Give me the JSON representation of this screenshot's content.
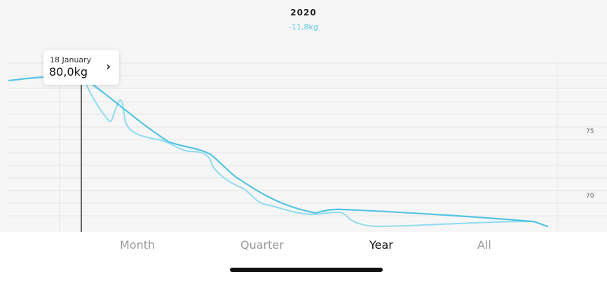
{
  "header": {
    "year": "2020",
    "delta": "-11,8kg"
  },
  "tooltip": {
    "date": "18 January",
    "value": "80,0kg",
    "chevron_icon": "chevron-right-icon"
  },
  "y_axis": {
    "ticks": [
      "75",
      "70"
    ]
  },
  "tabs": [
    {
      "label": "Month",
      "active": false
    },
    {
      "label": "Quarter",
      "active": false
    },
    {
      "label": "Year",
      "active": true
    },
    {
      "label": "All",
      "active": false
    }
  ],
  "colors": {
    "trend_line": "#55c4e4",
    "raw_line": "#8fdcf0",
    "grid": "#e6e6e6",
    "cursor": "#333333",
    "active_tab": "#111111",
    "inactive_tab": "#9a9a9a"
  }
}
